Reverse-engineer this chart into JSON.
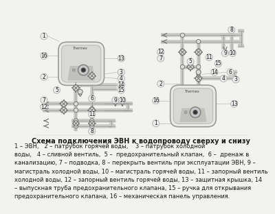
{
  "bg_color": "#f2f2ee",
  "title": "Схема подключения ЭВН к водопроводу сверху и снизу",
  "title_fontsize": 7.0,
  "body_text": "1 – ЭВН,   2 – патрубок горячей воды,    3 – патрубок холодной\nводы,   4 – сливной вентиль,  5 –  предохранительный клапан,  6 –  дренаж в\nканализацию, 7 – подводка, 8 – перекрыть вентиль при эксплуатации ЭВН, 9 –\nмагистраль холодной воды, 10 – магистраль горячей воды, 11 – запорный вентиль\nхолодной воды, 12 – запорный вентиль горячей воды, 13 – защитная крышка, 14\n– выпускная труба предохранительного клапана, 15 – ручка для открывания\nпредохранительного клапана, 16 – механическая панель управления.",
  "body_fontsize": 6.0,
  "text_color": "#1a1a1a",
  "line_color": "#777777",
  "pipe_color": "#c8c8c4",
  "pipe_lw": 4.0,
  "heater_fill": "#e8e8e4",
  "heater_fill2": "#d8d8d4",
  "heater_stroke": "#999999",
  "num_circle_color": "#ebebeb",
  "num_circle_edge": "#aaaaaa",
  "valve_fill": "#ddddda",
  "tee_fill": "#ddddda"
}
